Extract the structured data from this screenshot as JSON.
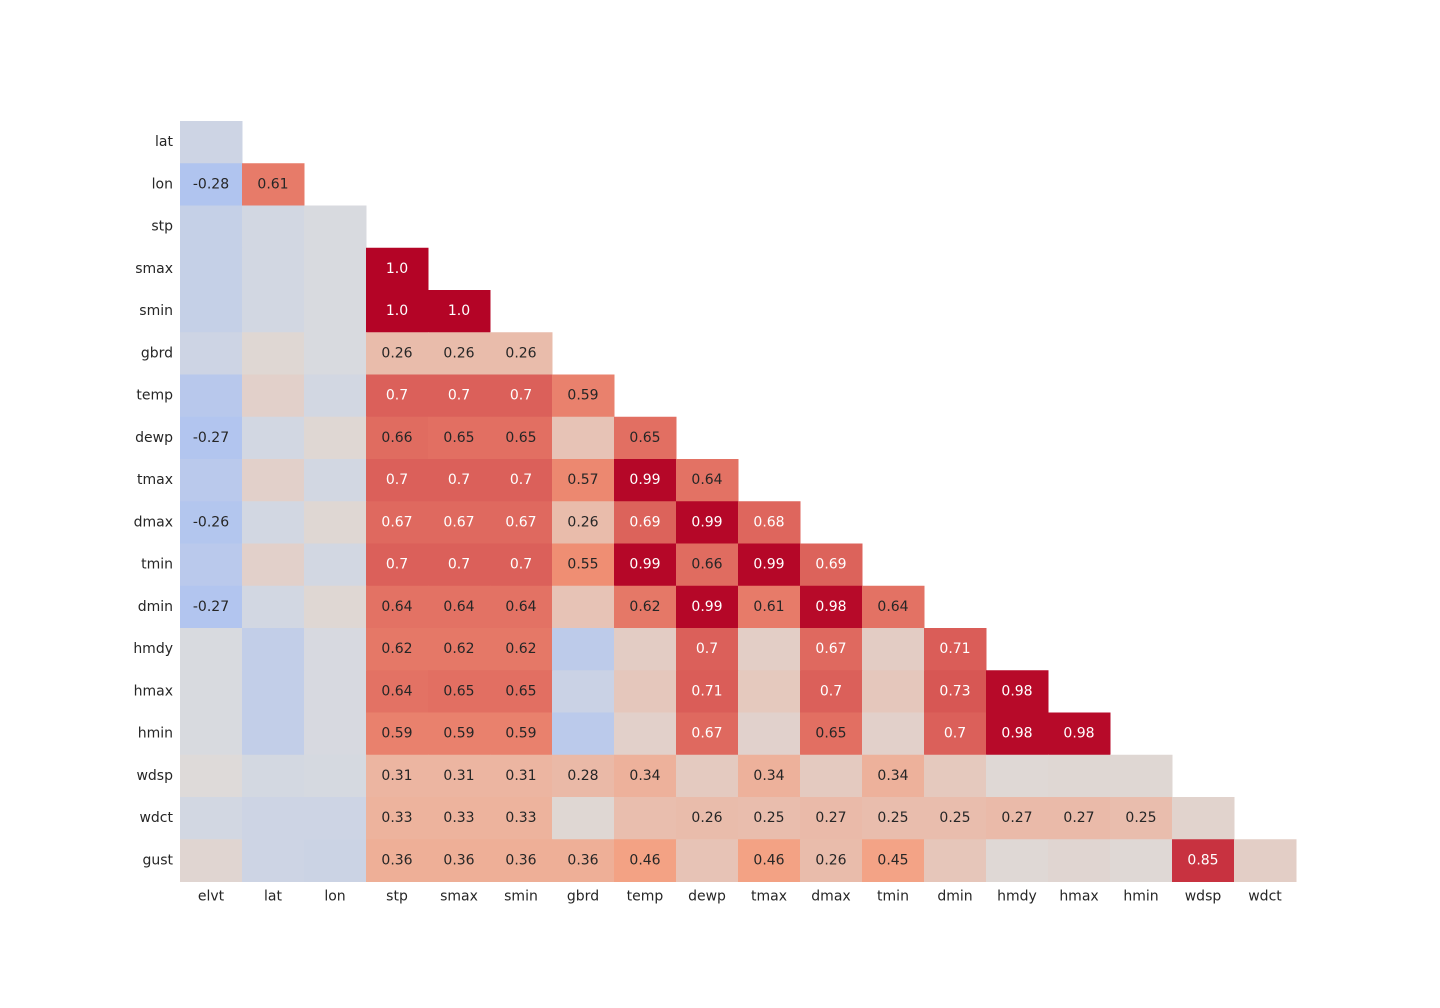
{
  "chart_data": {
    "type": "heatmap",
    "title": "",
    "xlabel": "",
    "ylabel": "",
    "colormap": "coolwarm",
    "vmin": -1,
    "vmax": 1,
    "annotation_threshold": 0.25,
    "x_labels": [
      "elvt",
      "lat",
      "lon",
      "stp",
      "smax",
      "smin",
      "gbrd",
      "temp",
      "dewp",
      "tmax",
      "dmax",
      "tmin",
      "dmin",
      "hmdy",
      "hmax",
      "hmin",
      "wdsp",
      "wdct"
    ],
    "y_labels": [
      "lat",
      "lon",
      "stp",
      "smax",
      "smin",
      "gbrd",
      "temp",
      "dewp",
      "tmax",
      "dmax",
      "tmin",
      "dmin",
      "hmdy",
      "hmax",
      "hmin",
      "wdsp",
      "wdct",
      "gust"
    ],
    "values": [
      [
        -0.1
      ],
      [
        -0.28,
        0.61
      ],
      [
        -0.15,
        -0.07,
        -0.03
      ],
      [
        -0.15,
        -0.07,
        -0.03,
        1.0
      ],
      [
        -0.15,
        -0.07,
        -0.03,
        1.0,
        1.0
      ],
      [
        -0.1,
        0.05,
        -0.03,
        0.26,
        0.26,
        0.26
      ],
      [
        -0.23,
        0.1,
        -0.07,
        0.7,
        0.7,
        0.7,
        0.59
      ],
      [
        -0.27,
        -0.07,
        0.05,
        0.66,
        0.65,
        0.65,
        0.2,
        0.65
      ],
      [
        -0.22,
        0.1,
        -0.07,
        0.7,
        0.7,
        0.7,
        0.57,
        0.99,
        0.64
      ],
      [
        -0.26,
        -0.07,
        0.05,
        0.67,
        0.67,
        0.67,
        0.26,
        0.69,
        0.99,
        0.68
      ],
      [
        -0.22,
        0.1,
        -0.07,
        0.7,
        0.7,
        0.7,
        0.55,
        0.99,
        0.66,
        0.99,
        0.69
      ],
      [
        -0.27,
        -0.07,
        0.05,
        0.64,
        0.64,
        0.64,
        0.2,
        0.62,
        0.99,
        0.61,
        0.98,
        0.64
      ],
      [
        -0.03,
        -0.17,
        -0.04,
        0.62,
        0.62,
        0.62,
        -0.2,
        0.13,
        0.7,
        0.12,
        0.67,
        0.13,
        0.71
      ],
      [
        -0.03,
        -0.17,
        -0.04,
        0.64,
        0.65,
        0.65,
        -0.12,
        0.17,
        0.71,
        0.16,
        0.7,
        0.17,
        0.73,
        0.98
      ],
      [
        -0.03,
        -0.17,
        -0.04,
        0.59,
        0.59,
        0.59,
        -0.21,
        0.1,
        0.67,
        0.09,
        0.65,
        0.1,
        0.7,
        0.98,
        0.98
      ],
      [
        0.02,
        -0.06,
        -0.05,
        0.31,
        0.31,
        0.31,
        0.28,
        0.34,
        0.15,
        0.34,
        0.15,
        0.34,
        0.16,
        0.04,
        0.05,
        0.05
      ],
      [
        -0.07,
        -0.1,
        -0.1,
        0.33,
        0.33,
        0.33,
        0.05,
        0.24,
        0.26,
        0.25,
        0.27,
        0.25,
        0.25,
        0.27,
        0.27,
        0.25,
        0.08
      ],
      [
        0.06,
        -0.1,
        -0.11,
        0.36,
        0.36,
        0.36,
        0.36,
        0.46,
        0.2,
        0.46,
        0.26,
        0.45,
        0.18,
        0.04,
        0.06,
        0.04,
        0.85,
        0.12
      ]
    ]
  }
}
